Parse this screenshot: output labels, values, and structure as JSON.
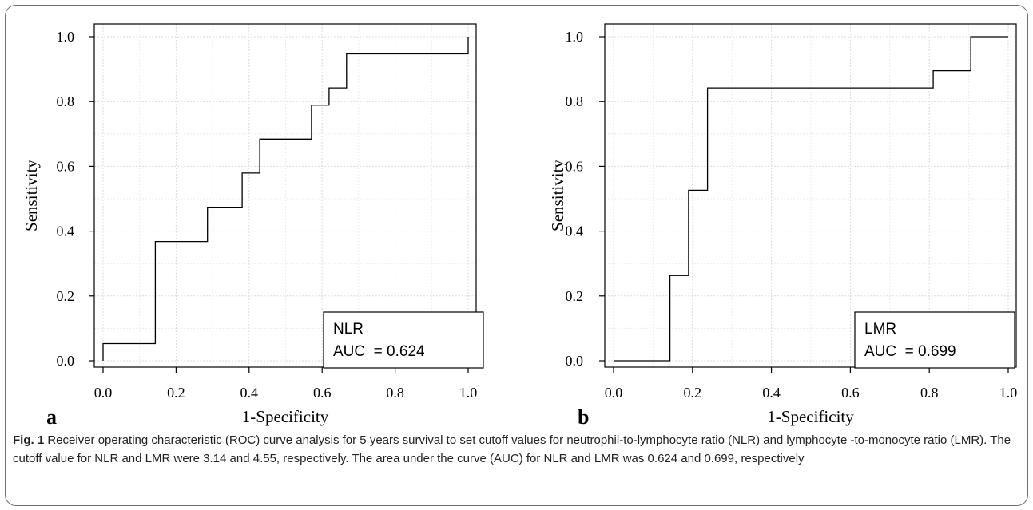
{
  "chart_data": [
    {
      "type": "line",
      "panel": "a",
      "xlabel": "1-Specificity",
      "ylabel": "Sensitivity",
      "xlim": [
        0,
        1
      ],
      "ylim": [
        0,
        1
      ],
      "xticks": [
        "0.0",
        "0.2",
        "0.4",
        "0.6",
        "0.8",
        "1.0"
      ],
      "yticks": [
        "0.0",
        "0.2",
        "0.4",
        "0.6",
        "0.8",
        "1.0"
      ],
      "grid": true,
      "legend": {
        "position": "bottom-right",
        "name": "NLR",
        "auc_text": "AUC  = 0.624"
      },
      "series": [
        {
          "name": "NLR",
          "x": [
            0.0,
            0.0,
            0.143,
            0.143,
            0.286,
            0.286,
            0.381,
            0.381,
            0.429,
            0.429,
            0.571,
            0.571,
            0.619,
            0.619,
            0.667,
            0.667,
            1.0,
            1.0
          ],
          "y": [
            0.0,
            0.053,
            0.053,
            0.368,
            0.368,
            0.474,
            0.474,
            0.579,
            0.579,
            0.684,
            0.684,
            0.789,
            0.789,
            0.842,
            0.842,
            0.947,
            0.947,
            1.0
          ]
        }
      ]
    },
    {
      "type": "line",
      "panel": "b",
      "xlabel": "1-Specificity",
      "ylabel": "Sensitivity",
      "xlim": [
        0,
        1
      ],
      "ylim": [
        0,
        1
      ],
      "xticks": [
        "0.0",
        "0.2",
        "0.4",
        "0.6",
        "0.8",
        "1.0"
      ],
      "yticks": [
        "0.0",
        "0.2",
        "0.4",
        "0.6",
        "0.8",
        "1.0"
      ],
      "grid": true,
      "legend": {
        "position": "bottom-right",
        "name": "LMR",
        "auc_text": "AUC  = 0.699"
      },
      "series": [
        {
          "name": "LMR",
          "x": [
            0.0,
            0.143,
            0.143,
            0.19,
            0.19,
            0.238,
            0.238,
            0.81,
            0.81,
            0.905,
            0.905,
            1.0
          ],
          "y": [
            0.0,
            0.0,
            0.263,
            0.263,
            0.526,
            0.526,
            0.842,
            0.842,
            0.895,
            0.895,
            1.0,
            1.0
          ]
        }
      ]
    }
  ],
  "caption": {
    "label": "Fig. 1",
    "text": " Receiver operating characteristic (ROC) curve analysis for 5 years survival to set cutoff values for neutrophil-to-lymphocyte ratio (NLR) and lymphocyte -to-monocyte ratio (LMR). The cutoff value for NLR and LMR were 3.14 and 4.55, respectively. The area under the curve (AUC) for NLR and LMR was 0.624 and 0.699, respectively"
  }
}
